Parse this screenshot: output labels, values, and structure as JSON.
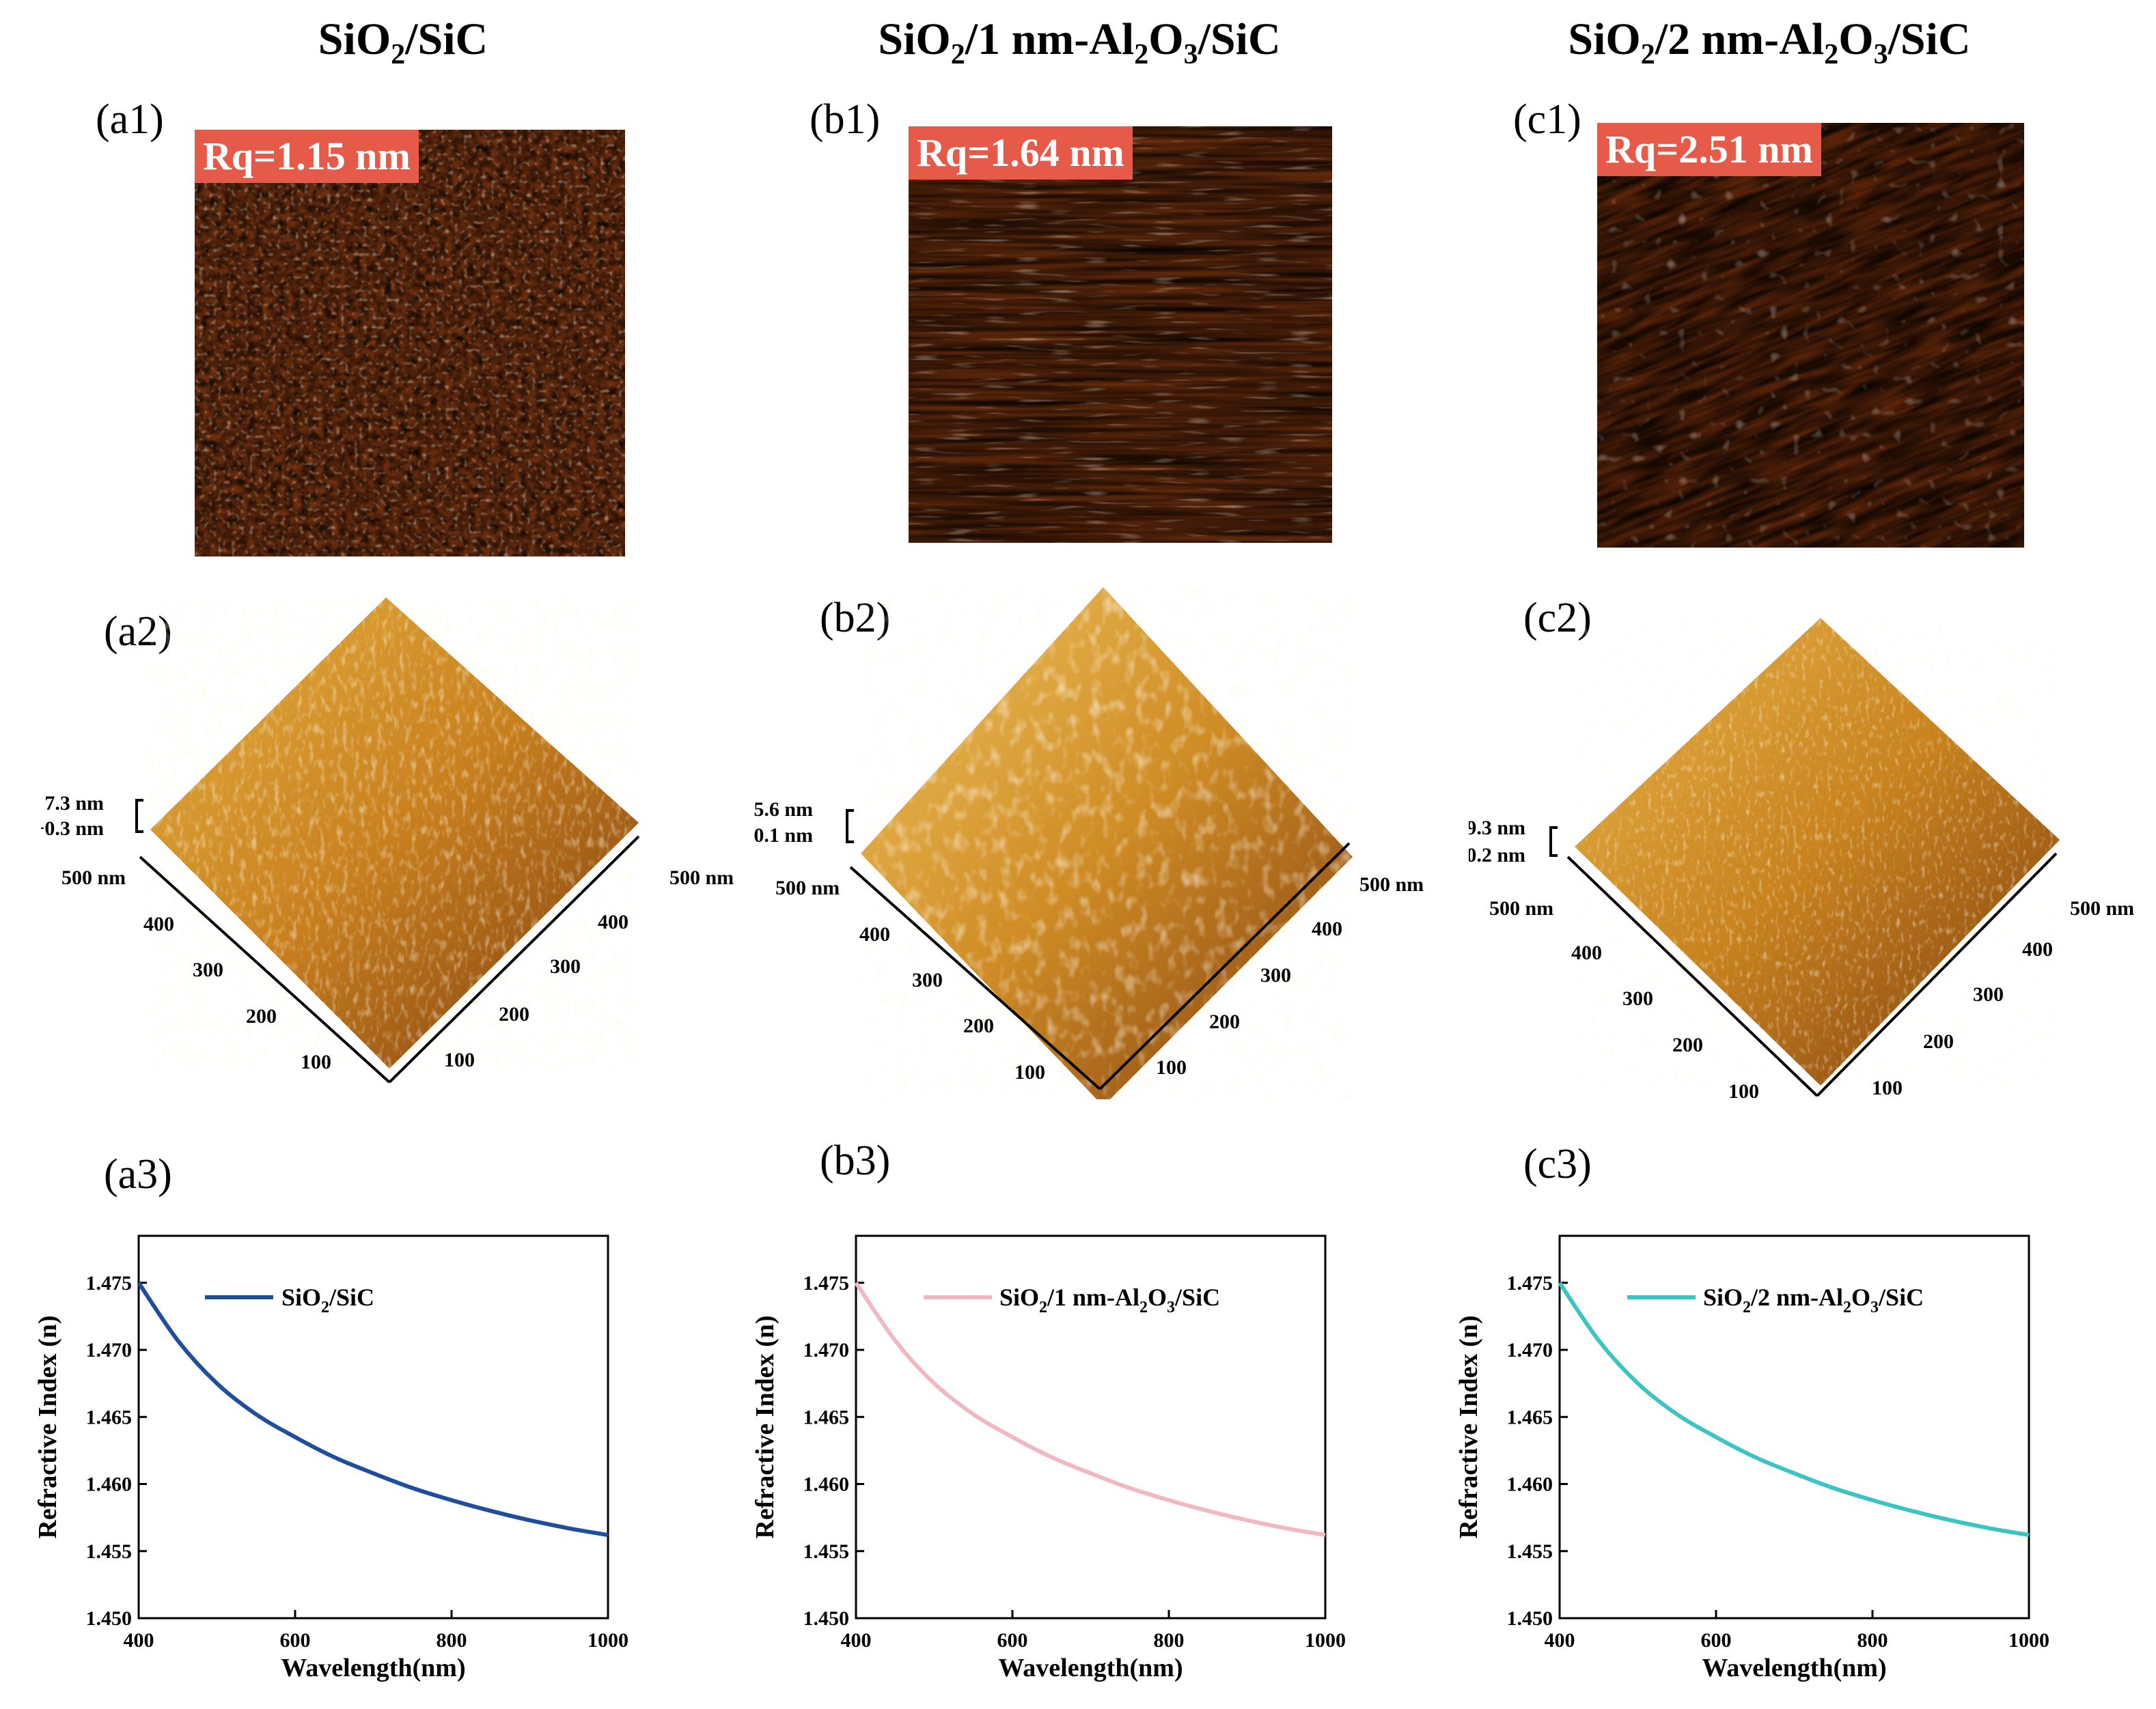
{
  "figure": {
    "columns": [
      {
        "title_parts": [
          "SiO",
          "2",
          "/SiC"
        ],
        "afm_label": "(a1)",
        "rq": "Rq=1.15 nm",
        "view3d_label": "(a2)",
        "z_max": "7.3 nm",
        "z_min": "−0.3 nm",
        "x_axis_ticks": [
          "100",
          "200",
          "300",
          "400",
          "500 nm"
        ],
        "y_axis_ticks": [
          "100",
          "200",
          "300",
          "400",
          "500 nm"
        ],
        "chart_label": "(a3)",
        "legend_parts": [
          "SiO",
          "2",
          "/SiC"
        ]
      },
      {
        "title_parts": [
          "SiO",
          "2",
          "/1 nm-Al",
          "2",
          "O",
          "3",
          "/SiC"
        ],
        "afm_label": "(b1)",
        "rq": "Rq=1.64 nm",
        "view3d_label": "(b2)",
        "z_max": "5.6 nm",
        "z_min": "0.1 nm",
        "x_axis_ticks": [
          "100",
          "200",
          "300",
          "400",
          "500 nm"
        ],
        "y_axis_ticks": [
          "100",
          "200",
          "300",
          "400",
          "500 nm"
        ],
        "chart_label": "(b3)",
        "legend_parts": [
          "SiO",
          "2",
          "/1 nm-Al",
          "2",
          "O",
          "3",
          "/SiC"
        ]
      },
      {
        "title_parts": [
          "SiO",
          "2",
          "/2 nm-Al",
          "2",
          "O",
          "3",
          "/SiC"
        ],
        "afm_label": "(c1)",
        "rq": "Rq=2.51 nm",
        "view3d_label": "(c2)",
        "z_max": "9.3 nm",
        "z_min": "0.2 nm",
        "x_axis_ticks": [
          "100",
          "200",
          "300",
          "400",
          "500 nm"
        ],
        "y_axis_ticks": [
          "100",
          "200",
          "300",
          "400",
          "500 nm"
        ],
        "chart_label": "(c3)",
        "legend_parts": [
          "SiO",
          "2",
          "/2 nm-Al",
          "2",
          "O",
          "3",
          "/SiC"
        ]
      }
    ]
  },
  "chart_data": [
    {
      "type": "line",
      "xlabel": "Wavelength(nm)",
      "ylabel": "Refractive Index (n)",
      "xlim": [
        400,
        1000
      ],
      "ylim": [
        1.45,
        1.4785
      ],
      "xticks": [
        400,
        600,
        800,
        1000
      ],
      "yticks": [
        1.45,
        1.455,
        1.46,
        1.465,
        1.47,
        1.475
      ],
      "ytick_labels": [
        "1.450",
        "1.455",
        "1.460",
        "1.465",
        "1.470",
        "1.475"
      ],
      "series": [
        {
          "name": "SiO2/SiC",
          "color": "#1f4e9c",
          "x": [
            400,
            450,
            500,
            550,
            600,
            650,
            700,
            750,
            800,
            850,
            900,
            950,
            1000
          ],
          "y": [
            1.475,
            1.4707,
            1.4675,
            1.4652,
            1.4635,
            1.462,
            1.4608,
            1.4597,
            1.4588,
            1.458,
            1.4573,
            1.4567,
            1.4562
          ]
        }
      ]
    },
    {
      "type": "line",
      "xlabel": "Wavelength(nm)",
      "ylabel": "Refractive Index (n)",
      "xlim": [
        400,
        1000
      ],
      "ylim": [
        1.45,
        1.4785
      ],
      "xticks": [
        400,
        600,
        800,
        1000
      ],
      "yticks": [
        1.45,
        1.455,
        1.46,
        1.465,
        1.47,
        1.475
      ],
      "ytick_labels": [
        "1.450",
        "1.455",
        "1.460",
        "1.465",
        "1.470",
        "1.475"
      ],
      "series": [
        {
          "name": "SiO2/1 nm-Al2O3/SiC",
          "color": "#f2b8c2",
          "x": [
            400,
            450,
            500,
            550,
            600,
            650,
            700,
            750,
            800,
            850,
            900,
            950,
            1000
          ],
          "y": [
            1.475,
            1.4707,
            1.4675,
            1.4652,
            1.4635,
            1.462,
            1.4608,
            1.4597,
            1.4588,
            1.458,
            1.4573,
            1.4567,
            1.4562
          ]
        }
      ]
    },
    {
      "type": "line",
      "xlabel": "Wavelength(nm)",
      "ylabel": "Refractive Index (n)",
      "xlim": [
        400,
        1000
      ],
      "ylim": [
        1.45,
        1.4785
      ],
      "xticks": [
        400,
        600,
        800,
        1000
      ],
      "yticks": [
        1.45,
        1.455,
        1.46,
        1.465,
        1.47,
        1.475
      ],
      "ytick_labels": [
        "1.450",
        "1.455",
        "1.460",
        "1.465",
        "1.470",
        "1.475"
      ],
      "series": [
        {
          "name": "SiO2/2 nm-Al2O3/SiC",
          "color": "#3cc4c4",
          "x": [
            400,
            450,
            500,
            550,
            600,
            650,
            700,
            750,
            800,
            850,
            900,
            950,
            1000
          ],
          "y": [
            1.475,
            1.4707,
            1.4675,
            1.4652,
            1.4635,
            1.462,
            1.4608,
            1.4597,
            1.4588,
            1.458,
            1.4573,
            1.4567,
            1.4562
          ]
        }
      ]
    }
  ]
}
